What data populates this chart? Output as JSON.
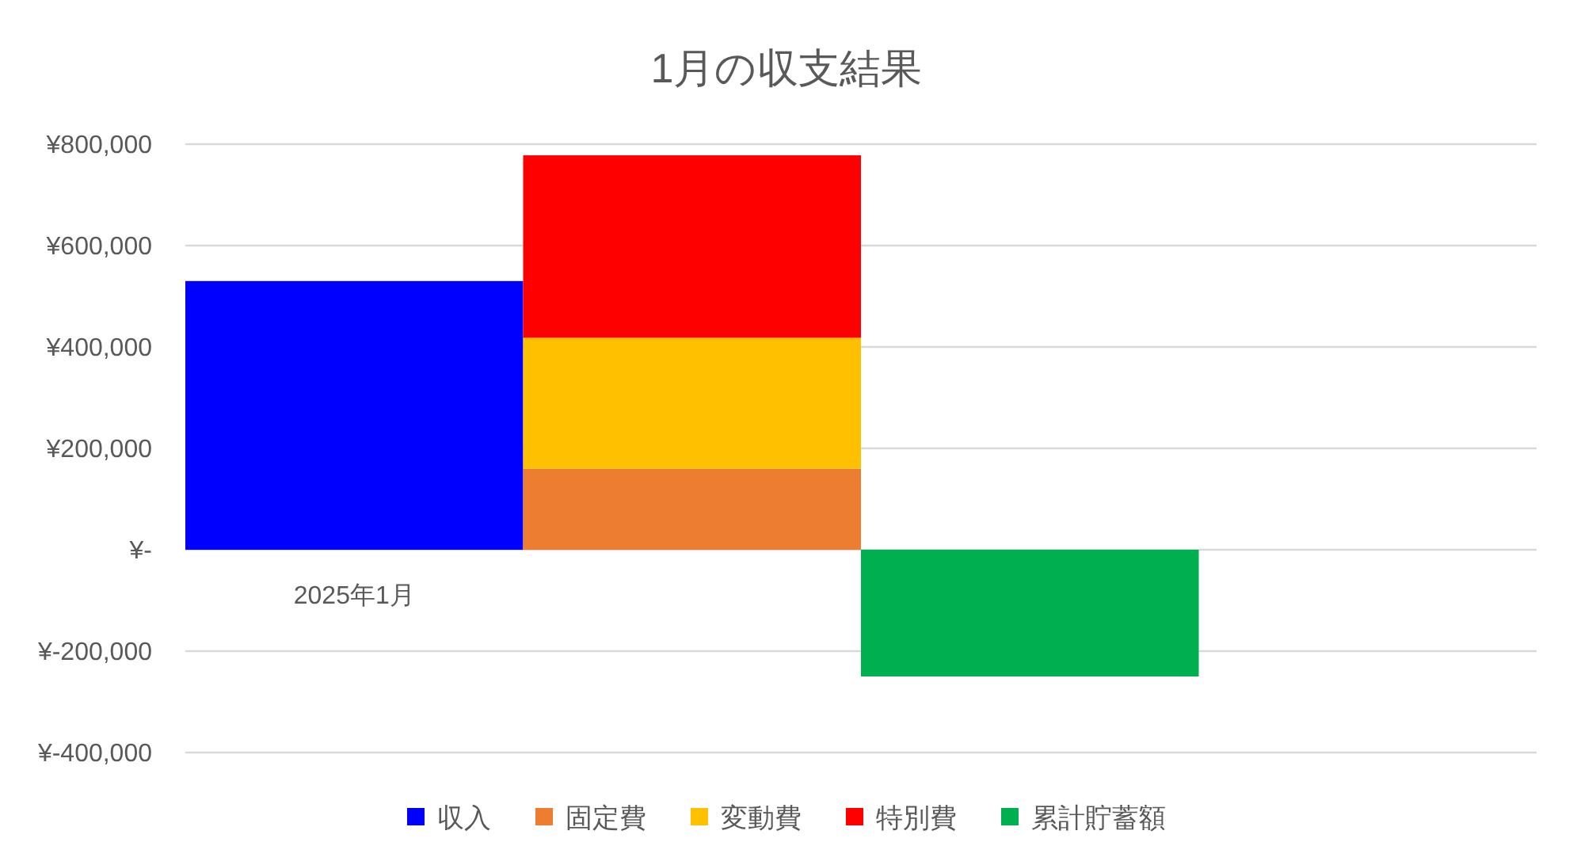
{
  "chart_data": {
    "type": "bar",
    "title": "1月の収支結果",
    "categories": [
      "2025年1月",
      null,
      null,
      null
    ],
    "stacked": true,
    "series": [
      {
        "name": "収入",
        "color": "#0000ff",
        "values": [
          530000,
          null,
          null,
          null
        ]
      },
      {
        "name": "固定費",
        "color": "#ed7d31",
        "values": [
          null,
          160000,
          null,
          null
        ]
      },
      {
        "name": "変動費",
        "color": "#ffc000",
        "values": [
          null,
          258000,
          null,
          null
        ]
      },
      {
        "name": "特別費",
        "color": "#ff0000",
        "values": [
          null,
          360000,
          null,
          null
        ]
      },
      {
        "name": "累計貯蓄額",
        "color": "#00b050",
        "values": [
          null,
          null,
          -250000,
          null
        ]
      }
    ],
    "ylim": [
      -400000,
      800000
    ],
    "yticks": [
      {
        "value": -400000,
        "label": "¥-400,000"
      },
      {
        "value": -200000,
        "label": "¥-200,000"
      },
      {
        "value": 0,
        "label": "¥-"
      },
      {
        "value": 200000,
        "label": "¥200,000"
      },
      {
        "value": 400000,
        "label": "¥400,000"
      },
      {
        "value": 600000,
        "label": "¥600,000"
      },
      {
        "value": 800000,
        "label": "¥800,000"
      }
    ],
    "grid": "y",
    "legend": "bottom"
  }
}
